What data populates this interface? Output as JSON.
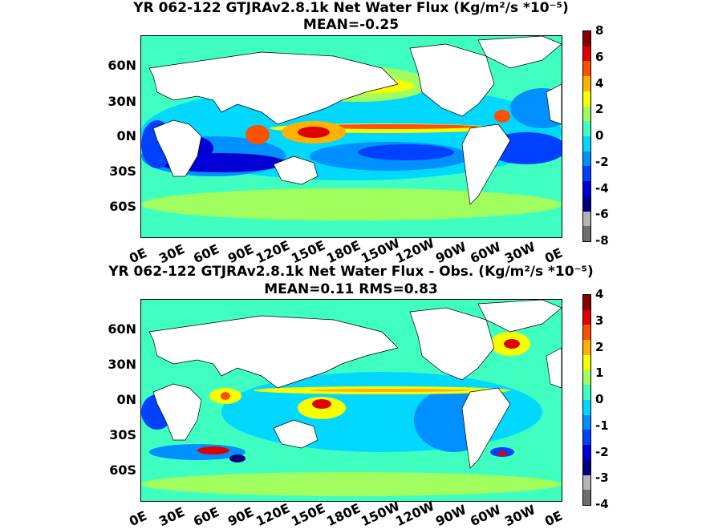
{
  "panels": [
    {
      "title_line1": "YR 062-122 GTJRAv2.8.1k  Net Water Flux (Kg/m²/s *10⁻⁵)",
      "title_line2": "MEAN=-0.25",
      "colorbar_ticks": [
        "8",
        "6",
        "4",
        "2",
        "0",
        "-2",
        "-4",
        "-6",
        "-8"
      ],
      "colormap": [
        "#6e6e6e",
        "#b4b4b4",
        "#00007f",
        "#0000d6",
        "#0040ff",
        "#0090ff",
        "#00d8ff",
        "#3effc0",
        "#a0ff5e",
        "#f8ff00",
        "#ffb200",
        "#ff5000",
        "#e00000",
        "#8a0000"
      ]
    },
    {
      "title_line1": "YR 062-122 GTJRAv2.8.1k  Net Water Flux - Obs. (Kg/m²/s *10⁻⁵)",
      "title_line2": "MEAN=0.11 RMS=0.83",
      "colorbar_ticks": [
        "4",
        "3",
        "2",
        "1",
        "0",
        "-1",
        "-2",
        "-3",
        "-4"
      ],
      "colormap": [
        "#6e6e6e",
        "#b4b4b4",
        "#00007f",
        "#0000d6",
        "#0040ff",
        "#0090ff",
        "#00d8ff",
        "#3effc0",
        "#a0ff5e",
        "#f8ff00",
        "#ffb200",
        "#ff5000",
        "#e00000",
        "#8a0000"
      ]
    }
  ],
  "lat_labels": [
    "60N",
    "30N",
    "0N",
    "30S",
    "60S"
  ],
  "lon_labels": [
    "0E",
    "30E",
    "60E",
    "90E",
    "120E",
    "150E",
    "180E",
    "150W",
    "120W",
    "90W",
    "60W",
    "30W",
    "0E"
  ]
}
